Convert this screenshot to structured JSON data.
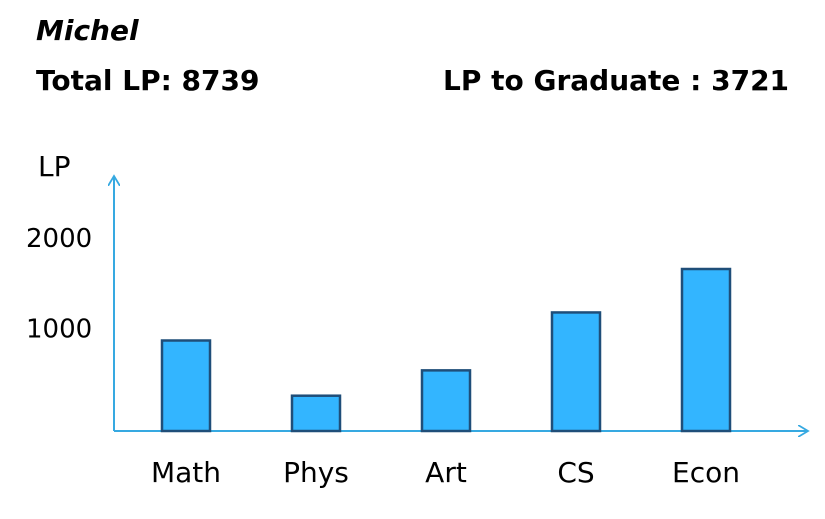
{
  "header": {
    "student_name": "Michel",
    "total_label": "Total LP: 8739",
    "graduate_label": "LP to Graduate : 3721"
  },
  "chart_data": {
    "type": "bar",
    "title": "",
    "xlabel": "",
    "ylabel": "LP",
    "categories": [
      "Math",
      "Phys",
      "Art",
      "CS",
      "Econ"
    ],
    "values": [
      1000,
      390,
      670,
      1310,
      1790
    ],
    "yticks": [
      1000,
      2000
    ],
    "ylim": [
      0,
      2000
    ],
    "grid": false,
    "colors": {
      "bar": "#33b5ff",
      "bar_stroke": "#1f4e79",
      "axis": "#36a9e1"
    }
  }
}
